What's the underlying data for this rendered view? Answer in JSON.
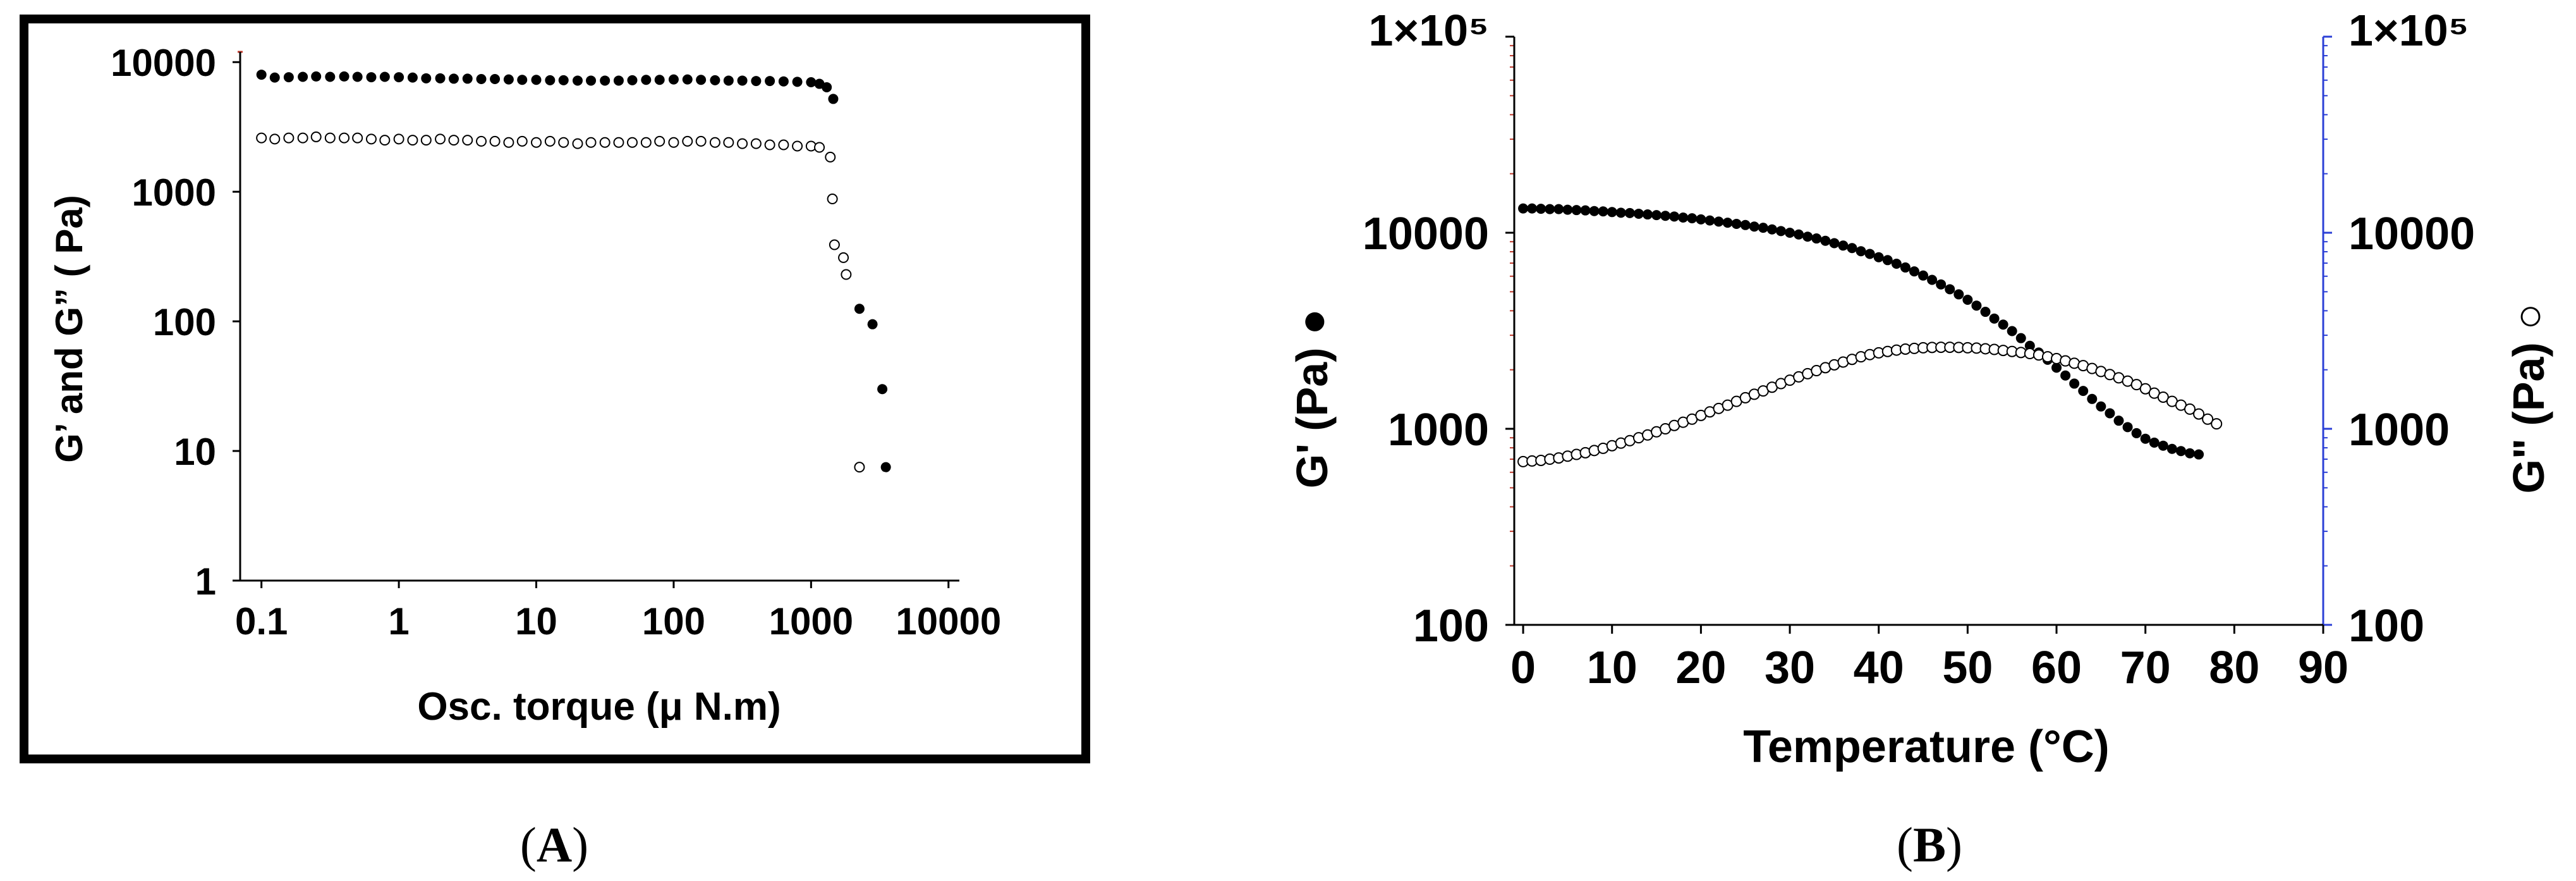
{
  "colors": {
    "ink": "#000000",
    "axis_tick_red": "#c0392b",
    "axis_right_blue": "#2b3fd6",
    "marker_open": "#ffffff"
  },
  "chart_data": [
    {
      "panel_label": "A",
      "type": "scatter",
      "xscale": "log",
      "yscale": "log",
      "xlim": [
        0.07,
        12000
      ],
      "ylim": [
        1,
        12000
      ],
      "xlabel": "Osc. torque (μ N.m)",
      "ylabel": "G’ and G”  ( Pa)",
      "x_ticks": [
        0.1,
        1,
        10,
        100,
        1000,
        10000
      ],
      "x_tick_labels": [
        "0.1",
        "1",
        "10",
        "100",
        "1000",
        "10000"
      ],
      "y_ticks": [
        1,
        10,
        100,
        1000,
        10000
      ],
      "y_tick_labels": [
        "1",
        "10",
        "100",
        "1000",
        "10000"
      ],
      "marker_legend": [
        "filled",
        "open"
      ],
      "series": [
        {
          "marker": "filled",
          "points": [
            [
              0.1,
              8000
            ],
            [
              0.125,
              7600
            ],
            [
              0.158,
              7650
            ],
            [
              0.2,
              7700
            ],
            [
              0.25,
              7750
            ],
            [
              0.316,
              7700
            ],
            [
              0.4,
              7750
            ],
            [
              0.5,
              7700
            ],
            [
              0.63,
              7650
            ],
            [
              0.79,
              7700
            ],
            [
              1.0,
              7650
            ],
            [
              1.26,
              7600
            ],
            [
              1.58,
              7500
            ],
            [
              2.0,
              7500
            ],
            [
              2.51,
              7450
            ],
            [
              3.16,
              7450
            ],
            [
              3.98,
              7400
            ],
            [
              5.0,
              7400
            ],
            [
              6.3,
              7350
            ],
            [
              7.9,
              7300
            ],
            [
              10,
              7300
            ],
            [
              12.6,
              7250
            ],
            [
              15.8,
              7250
            ],
            [
              20,
              7200
            ],
            [
              25,
              7200
            ],
            [
              31.6,
              7200
            ],
            [
              39.8,
              7200
            ],
            [
              50,
              7250
            ],
            [
              63,
              7300
            ],
            [
              79,
              7300
            ],
            [
              100,
              7350
            ],
            [
              126,
              7350
            ],
            [
              158,
              7300
            ],
            [
              200,
              7250
            ],
            [
              251,
              7200
            ],
            [
              316,
              7200
            ],
            [
              398,
              7150
            ],
            [
              501,
              7150
            ],
            [
              631,
              7100
            ],
            [
              794,
              7050
            ],
            [
              1000,
              7000
            ],
            [
              1150,
              6800
            ],
            [
              1300,
              6400
            ],
            [
              1450,
              5200
            ],
            [
              2250,
              125
            ],
            [
              2800,
              95
            ],
            [
              3300,
              30
            ],
            [
              3500,
              7.5
            ]
          ]
        },
        {
          "marker": "open",
          "points": [
            [
              0.1,
              2600
            ],
            [
              0.125,
              2550
            ],
            [
              0.158,
              2600
            ],
            [
              0.2,
              2600
            ],
            [
              0.25,
              2650
            ],
            [
              0.316,
              2600
            ],
            [
              0.4,
              2600
            ],
            [
              0.5,
              2600
            ],
            [
              0.63,
              2550
            ],
            [
              0.79,
              2500
            ],
            [
              1.0,
              2550
            ],
            [
              1.26,
              2500
            ],
            [
              1.58,
              2500
            ],
            [
              2.0,
              2550
            ],
            [
              2.51,
              2500
            ],
            [
              3.16,
              2500
            ],
            [
              3.98,
              2450
            ],
            [
              5.0,
              2450
            ],
            [
              6.3,
              2400
            ],
            [
              7.9,
              2450
            ],
            [
              10,
              2400
            ],
            [
              12.6,
              2450
            ],
            [
              15.8,
              2400
            ],
            [
              20,
              2350
            ],
            [
              25,
              2400
            ],
            [
              31.6,
              2400
            ],
            [
              39.8,
              2400
            ],
            [
              50,
              2400
            ],
            [
              63,
              2400
            ],
            [
              79,
              2450
            ],
            [
              100,
              2400
            ],
            [
              126,
              2450
            ],
            [
              158,
              2450
            ],
            [
              200,
              2400
            ],
            [
              251,
              2400
            ],
            [
              316,
              2350
            ],
            [
              398,
              2350
            ],
            [
              501,
              2300
            ],
            [
              631,
              2300
            ],
            [
              794,
              2250
            ],
            [
              1000,
              2250
            ],
            [
              1150,
              2200
            ],
            [
              1380,
              1850
            ],
            [
              1430,
              880
            ],
            [
              1480,
              390
            ],
            [
              1720,
              310
            ],
            [
              1800,
              230
            ],
            [
              2250,
              7.5
            ]
          ]
        }
      ]
    },
    {
      "panel_label": "B",
      "type": "scatter",
      "xscale": "linear",
      "yscale": "log",
      "xlim": [
        -1,
        90
      ],
      "ylim": [
        100,
        100000
      ],
      "xlabel": "Temperature (°C)",
      "ylabel_left": "G' (Pa) ●",
      "ylabel_right": "G\" (Pa) ○",
      "x_ticks": [
        0,
        10,
        20,
        30,
        40,
        50,
        60,
        70,
        80,
        90
      ],
      "x_tick_labels": [
        "0",
        "10",
        "20",
        "30",
        "40",
        "50",
        "60",
        "70",
        "80",
        "90"
      ],
      "y_ticks": [
        100,
        1000,
        10000,
        100000
      ],
      "y_tick_labels": [
        "100",
        "1000",
        "10000",
        "1×10⁵"
      ],
      "y_tick_labels_right": [
        "100",
        "1000",
        "10000",
        "1×10⁵"
      ],
      "series": [
        {
          "name": "G'",
          "marker": "filled",
          "x": [
            0,
            1,
            2,
            3,
            4,
            5,
            6,
            7,
            8,
            9,
            10,
            11,
            12,
            13,
            14,
            15,
            16,
            17,
            18,
            19,
            20,
            21,
            22,
            23,
            24,
            25,
            26,
            27,
            28,
            29,
            30,
            31,
            32,
            33,
            34,
            35,
            36,
            37,
            38,
            39,
            40,
            41,
            42,
            43,
            44,
            45,
            46,
            47,
            48,
            49,
            50,
            51,
            52,
            53,
            54,
            55,
            56,
            57,
            58,
            59,
            60,
            61,
            62,
            63,
            64,
            65,
            66,
            67,
            68,
            69,
            70,
            71,
            72,
            73,
            74,
            75,
            76
          ],
          "y": [
            13300,
            13300,
            13250,
            13200,
            13200,
            13100,
            13050,
            13000,
            12900,
            12850,
            12750,
            12650,
            12600,
            12500,
            12400,
            12300,
            12200,
            12100,
            11950,
            11850,
            11700,
            11550,
            11400,
            11250,
            11100,
            10950,
            10750,
            10600,
            10400,
            10200,
            10000,
            9800,
            9550,
            9350,
            9100,
            8850,
            8600,
            8350,
            8050,
            7800,
            7500,
            7250,
            6950,
            6650,
            6350,
            6050,
            5750,
            5450,
            5150,
            4850,
            4550,
            4250,
            3950,
            3650,
            3400,
            3150,
            2900,
            2650,
            2450,
            2250,
            2050,
            1870,
            1700,
            1560,
            1420,
            1300,
            1200,
            1100,
            1020,
            950,
            890,
            850,
            820,
            790,
            770,
            750,
            740
          ]
        },
        {
          "name": "G\"",
          "marker": "open",
          "x": [
            0,
            1,
            2,
            3,
            4,
            5,
            6,
            7,
            8,
            9,
            10,
            11,
            12,
            13,
            14,
            15,
            16,
            17,
            18,
            19,
            20,
            21,
            22,
            23,
            24,
            25,
            26,
            27,
            28,
            29,
            30,
            31,
            32,
            33,
            34,
            35,
            36,
            37,
            38,
            39,
            40,
            41,
            42,
            43,
            44,
            45,
            46,
            47,
            48,
            49,
            50,
            51,
            52,
            53,
            54,
            55,
            56,
            57,
            58,
            59,
            60,
            61,
            62,
            63,
            64,
            65,
            66,
            67,
            68,
            69,
            70,
            71,
            72,
            73,
            74,
            75,
            76,
            77,
            78
          ],
          "y": [
            680,
            685,
            690,
            700,
            710,
            725,
            740,
            755,
            775,
            795,
            820,
            845,
            870,
            900,
            930,
            965,
            1000,
            1040,
            1080,
            1120,
            1170,
            1220,
            1270,
            1320,
            1380,
            1440,
            1500,
            1560,
            1630,
            1700,
            1770,
            1840,
            1910,
            1980,
            2050,
            2120,
            2190,
            2260,
            2330,
            2390,
            2440,
            2480,
            2520,
            2550,
            2570,
            2590,
            2600,
            2605,
            2605,
            2600,
            2590,
            2580,
            2560,
            2540,
            2510,
            2480,
            2450,
            2420,
            2380,
            2330,
            2280,
            2220,
            2160,
            2100,
            2030,
            1960,
            1890,
            1820,
            1750,
            1680,
            1600,
            1520,
            1450,
            1380,
            1320,
            1260,
            1190,
            1120,
            1060
          ]
        }
      ]
    }
  ]
}
